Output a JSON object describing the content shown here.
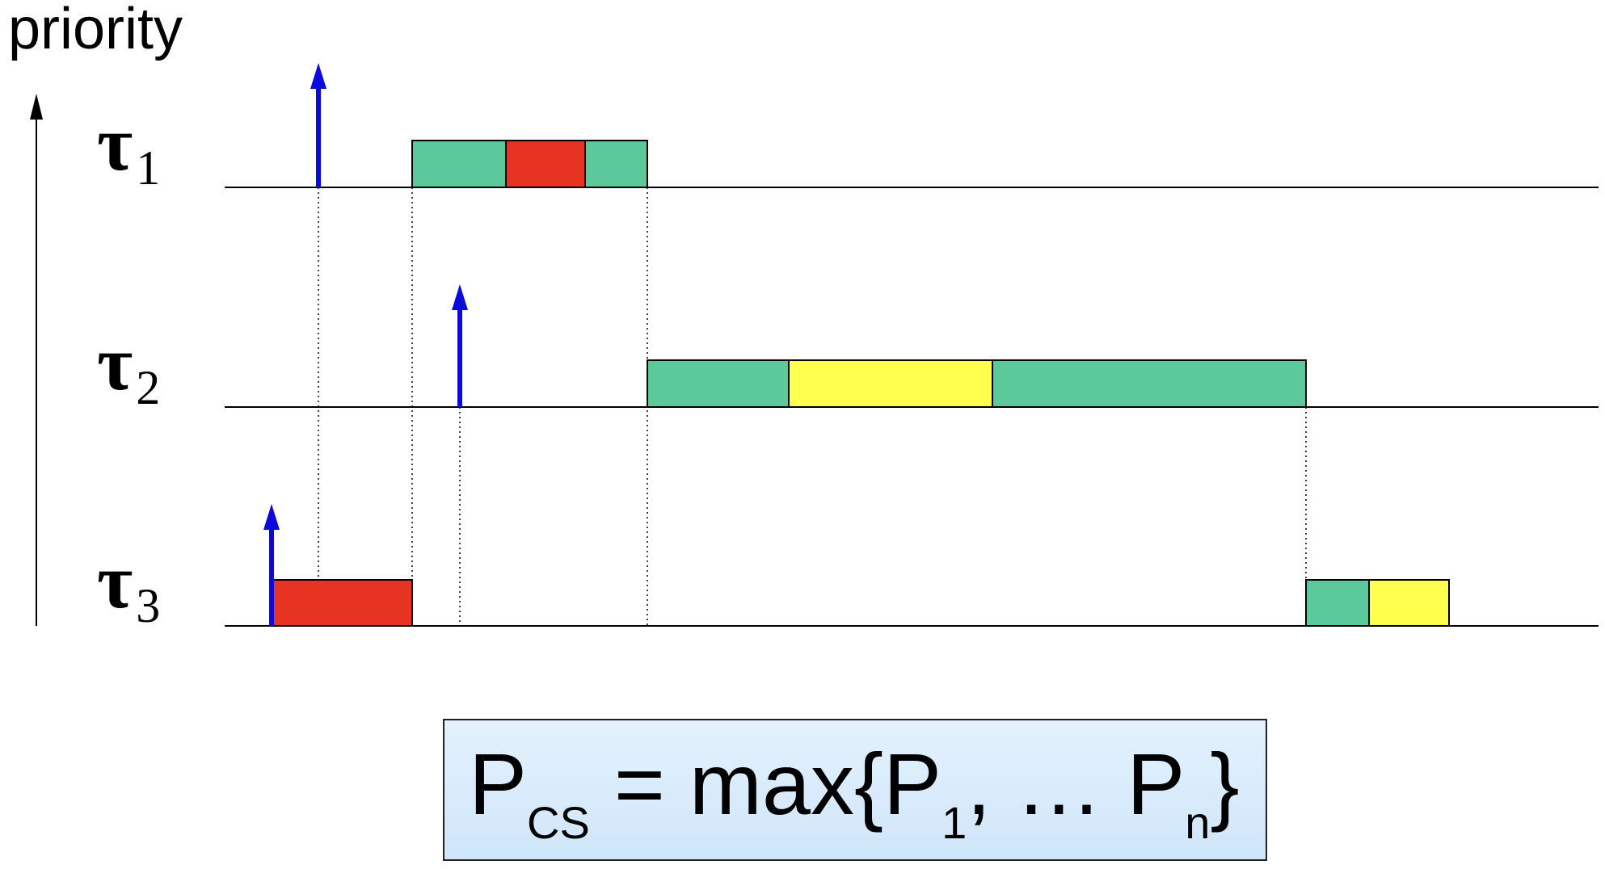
{
  "axis": {
    "title": "priority"
  },
  "tasks": [
    {
      "symbol": "τ",
      "index": "1"
    },
    {
      "symbol": "τ",
      "index": "2"
    },
    {
      "symbol": "τ",
      "index": "3"
    }
  ],
  "colors": {
    "normal": "#5cc99a",
    "critical_red": "#e73422",
    "critical_yellow": "#ffff4d",
    "arrival_arrow": "#0a0adc"
  },
  "formula": {
    "lhs": "P",
    "lhs_sub": "CS",
    "op": " = max{P",
    "sub1": "1",
    "mid": ", … P",
    "subn": "n",
    "close": "}"
  }
}
